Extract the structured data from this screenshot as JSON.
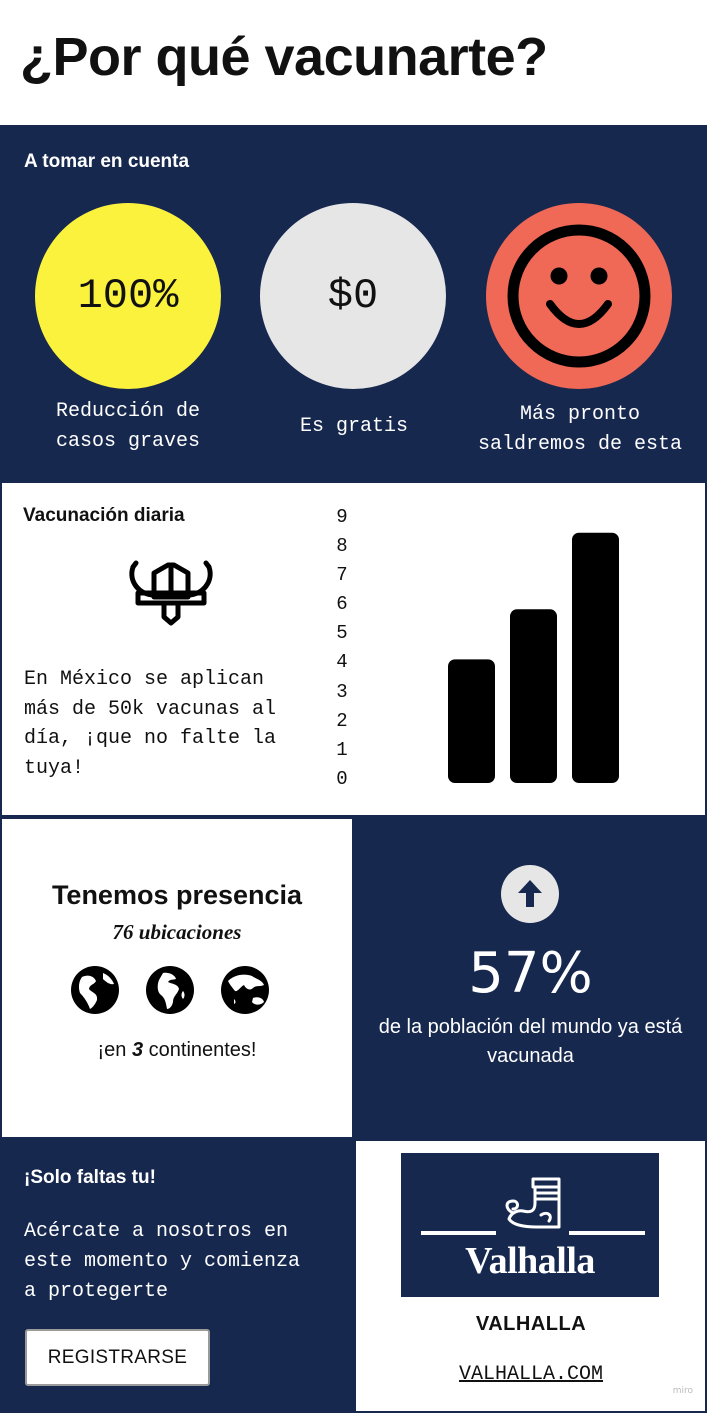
{
  "title": "¿Por qué vacunarte?",
  "colors": {
    "navy": "#17284f",
    "yellow": "#fbf23e",
    "gray": "#e6e6e6",
    "coral": "#f06856"
  },
  "considerations": {
    "heading": "A tomar en cuenta",
    "items": [
      {
        "value": "100%",
        "caption_line1": "Reducción de",
        "caption_line2": "casos graves",
        "icon": ""
      },
      {
        "value": "$0",
        "caption_line1": "Es gratis",
        "caption_line2": "",
        "icon": ""
      },
      {
        "value": "",
        "caption_line1": "Más pronto",
        "caption_line2": "saldremos de esta",
        "icon": "smiley-face-icon"
      }
    ]
  },
  "daily": {
    "heading": "Vacunación diaria",
    "icon": "viking-helmet-icon",
    "body_lines": [
      "En México se aplican",
      "más de 50k vacunas al",
      "día, ¡que no falte la",
      "tuya!"
    ]
  },
  "chart_data": {
    "type": "bar",
    "title": "",
    "xlabel": "",
    "ylabel": "",
    "ylim": [
      0,
      9
    ],
    "y_ticks": [
      "9",
      "8",
      "7",
      "6",
      "5",
      "4",
      "3",
      "2",
      "1",
      "0"
    ],
    "values": [
      4.2,
      5.9,
      8.5
    ]
  },
  "presence": {
    "title": "Tenemos presencia",
    "subtitle": "76 ubicaciones",
    "continents_prefix": "¡en ",
    "continents_count": "3",
    "continents_suffix": " continentes!",
    "icons": [
      "globe-americas-icon",
      "globe-africa-icon",
      "globe-asia-icon"
    ]
  },
  "world": {
    "icon": "arrow-up-icon",
    "percent": "57%",
    "caption_line1": "de la población del mundo ya está",
    "caption_line2": "vacunada"
  },
  "cta": {
    "heading": "¡Solo faltas tu!",
    "body_lines": [
      "Acércate a nosotros en",
      "este momento y comienza",
      "a protegerte"
    ],
    "button_label": "REGISTRARSE"
  },
  "brand": {
    "logo_text": "Valhalla",
    "name": "VALHALLA",
    "link": "VALHALLA.COM"
  },
  "watermark": "miro"
}
